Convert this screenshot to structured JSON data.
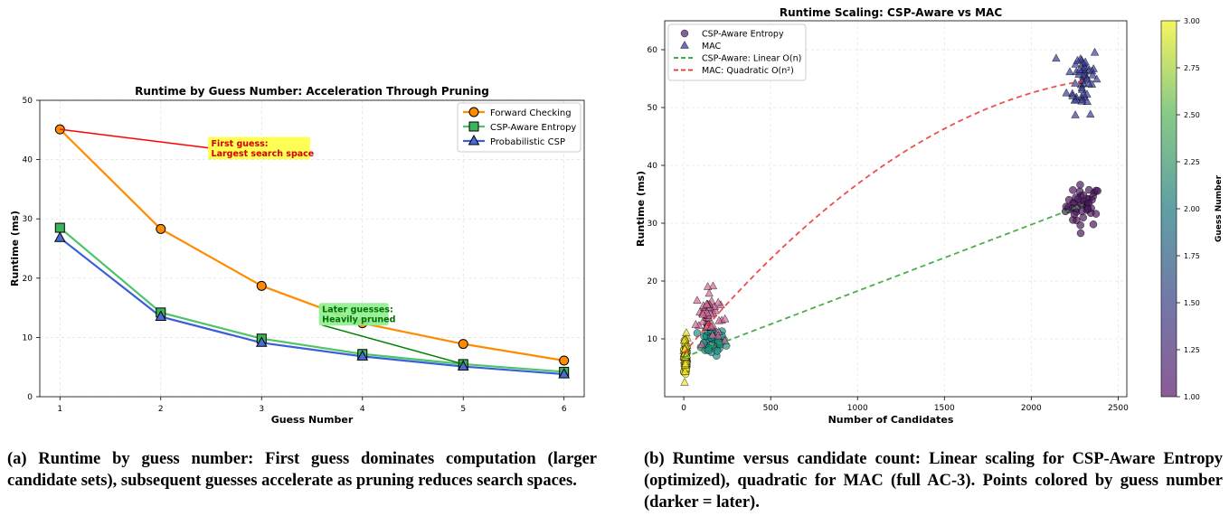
{
  "captions": {
    "a": "(a) Runtime by guess number: First guess dominates computation (larger candidate sets), subsequent guesses accelerate as pruning reduces search spaces.",
    "b": "(b) Runtime versus candidate count: Linear scaling for CSP-Aware Entropy (optimized), quadratic for MAC (full AC-3). Points colored by guess number (darker = later)."
  },
  "chart_data": [
    {
      "type": "line",
      "title": "Runtime by Guess Number: Acceleration Through Pruning",
      "xlabel": "Guess Number",
      "ylabel": "Runtime (ms)",
      "x": [
        1,
        2,
        3,
        4,
        5,
        6
      ],
      "xlim": [
        0.8,
        6.2
      ],
      "ylim": [
        0,
        50
      ],
      "xticks": [
        "1",
        "2",
        "3",
        "4",
        "5",
        "6"
      ],
      "yticks": [
        "0",
        "10",
        "20",
        "30",
        "40",
        "50"
      ],
      "grid": true,
      "legend_position": "top-right",
      "series": [
        {
          "name": "Forward Checking",
          "values": [
            45.1,
            28.3,
            18.7,
            12.4,
            8.9,
            6.1
          ],
          "color": "#ff8c00",
          "fill": "#ff8c00",
          "marker": "circle"
        },
        {
          "name": "CSP-Aware Entropy",
          "values": [
            28.5,
            14.2,
            9.8,
            7.2,
            5.5,
            4.2
          ],
          "color": "#4ec46a",
          "fill": "#3cb35a",
          "marker": "square"
        },
        {
          "name": "Probabilistic CSP",
          "values": [
            26.8,
            13.5,
            9.1,
            6.8,
            5.1,
            3.8
          ],
          "color": "#3a5fd8",
          "fill": "#4a6bd6",
          "marker": "triangle"
        }
      ],
      "annotations": [
        {
          "lines": [
            "First guess:",
            "Largest search space"
          ],
          "color": "#ff0000",
          "box": "#ffff44",
          "text_x": 2.5,
          "text_y": 41.0,
          "arrow_to_x": 1,
          "arrow_to_y": 45.1
        },
        {
          "lines": [
            "Later guesses:",
            "Heavily pruned"
          ],
          "color": "#008000",
          "box": "#90ee90",
          "text_x": 3.6,
          "text_y": 13.0,
          "arrow_to_x": 5,
          "arrow_to_y": 5.5
        }
      ]
    },
    {
      "type": "scatter",
      "title": "Runtime Scaling: CSP-Aware vs MAC",
      "xlabel": "Number of Candidates",
      "ylabel": "Runtime (ms)",
      "xlim": [
        -110,
        2550
      ],
      "ylim": [
        0,
        65
      ],
      "xticks": [
        "0",
        "500",
        "1000",
        "1500",
        "2000",
        "2500"
      ],
      "yticks": [
        "10",
        "20",
        "30",
        "40",
        "50",
        "60"
      ],
      "grid": true,
      "legend_position": "top-left",
      "series": [
        {
          "name": "CSP-Aware Entropy",
          "marker": "circle"
        },
        {
          "name": "MAC",
          "marker": "triangle"
        }
      ],
      "clusters": [
        {
          "series": "CSP-Aware Entropy",
          "guess": 1,
          "cx": 2300,
          "cy": 33,
          "sx": 50,
          "sy": 1.8,
          "n": 45
        },
        {
          "series": "CSP-Aware Entropy",
          "guess": 2,
          "cx": 160,
          "cy": 9.5,
          "sx": 40,
          "sy": 1.2,
          "n": 45
        },
        {
          "series": "CSP-Aware Entropy",
          "guess": 3,
          "cx": 10,
          "cy": 6.5,
          "sx": 5,
          "sy": 1.5,
          "n": 45
        },
        {
          "series": "MAC",
          "guess": 1,
          "cx": 2300,
          "cy": 55,
          "sx": 45,
          "sy": 3.0,
          "n": 50
        },
        {
          "series": "MAC",
          "guess": 2,
          "cx": 140,
          "cy": 14,
          "sx": 35,
          "sy": 2.2,
          "n": 50
        },
        {
          "series": "MAC",
          "guess": 3,
          "cx": 10,
          "cy": 7.5,
          "sx": 5,
          "sy": 1.5,
          "n": 40
        }
      ],
      "fits": [
        {
          "name": "CSP-Aware: Linear O(n)",
          "color": "#2ca02c",
          "kind": "linear",
          "points": [
            [
              0,
              6.8
            ],
            [
              2300,
              33.2
            ]
          ]
        },
        {
          "name": "MAC: Quadratic O(n²)",
          "color": "#e8312f",
          "kind": "quadratic",
          "points": [
            [
              0,
              7.5
            ],
            [
              1150,
              40.0
            ],
            [
              2300,
              54.6
            ]
          ]
        }
      ],
      "colorbar": {
        "label": "Guess Number",
        "min": 1.0,
        "max": 3.0,
        "ticks": [
          "1.00",
          "1.25",
          "1.50",
          "1.75",
          "2.00",
          "2.25",
          "2.50",
          "2.75",
          "3.00"
        ],
        "colormap": "viridis"
      }
    }
  ]
}
